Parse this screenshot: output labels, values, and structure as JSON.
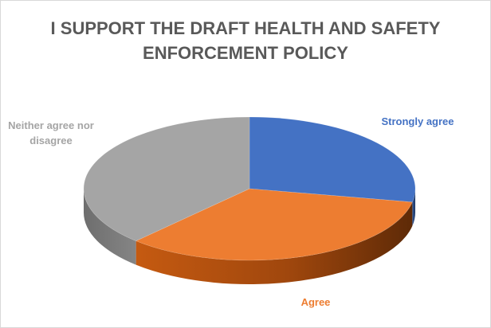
{
  "chart_data": {
    "type": "pie",
    "title_lines": [
      "I SUPPORT THE DRAFT HEALTH AND SAFETY",
      "ENFORCEMENT POLICY"
    ],
    "slices": [
      {
        "label": "Strongly agree",
        "value": 28,
        "color": "#4472C4",
        "label_color": "#4472C4"
      },
      {
        "label": "Agree",
        "value": 34,
        "color": "#ED7D31",
        "label_color": "#ED7D31"
      },
      {
        "label": "Neither agree nor disagree",
        "value": 38,
        "color": "#A5A5A5",
        "label_color": "#A5A5A5"
      }
    ],
    "three_d": true,
    "legend": "none"
  }
}
